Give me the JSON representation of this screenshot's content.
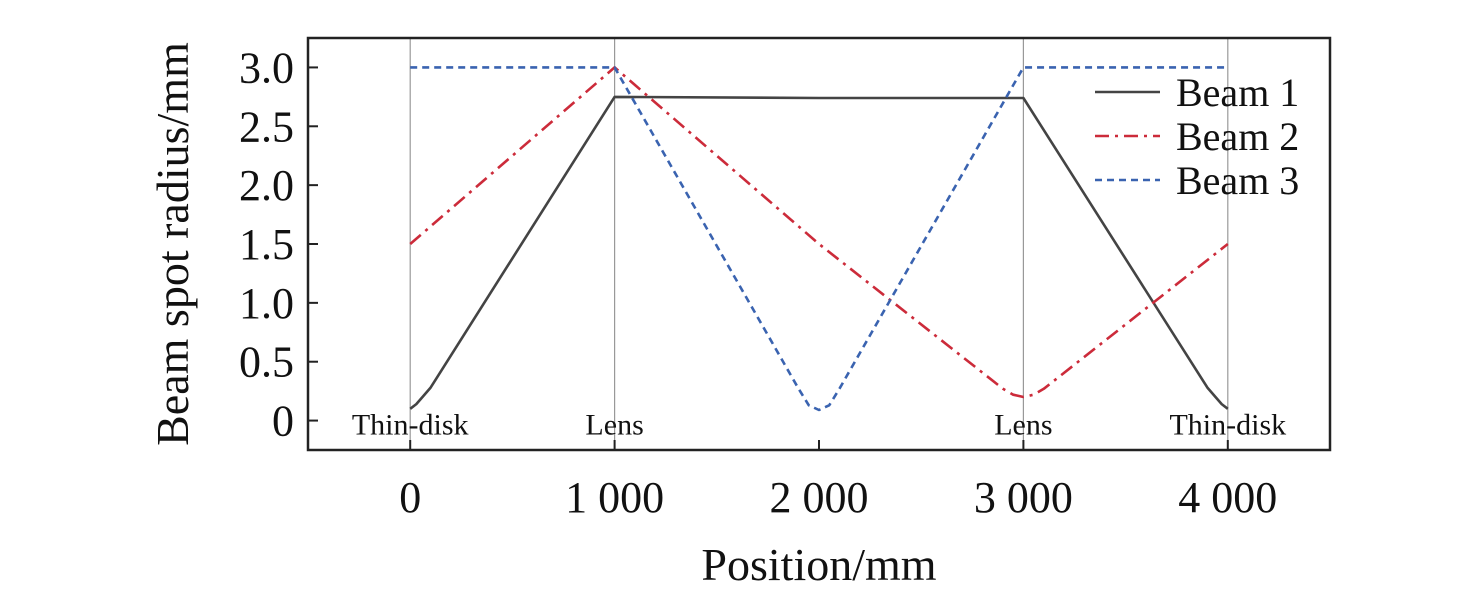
{
  "chart_data": {
    "type": "line",
    "title": "",
    "xlabel": "Position/mm",
    "ylabel": "Beam spot radius/mm",
    "xlim": [
      -500,
      4500
    ],
    "ylim": [
      -0.25,
      3.25
    ],
    "xticks": [
      0,
      1000,
      2000,
      3000,
      4000
    ],
    "xtick_labels": [
      "0",
      "1 000",
      "2 000",
      "3 000",
      "4 000"
    ],
    "yticks": [
      0,
      0.5,
      1.0,
      1.5,
      2.0,
      2.5,
      3.0
    ],
    "ytick_labels": [
      "0",
      "0.5",
      "1.0",
      "1.5",
      "2.0",
      "2.5",
      "3.0"
    ],
    "grid": false,
    "legend_position": "top-right",
    "vlines": [
      0,
      1000,
      3000,
      4000
    ],
    "annotations": [
      {
        "text": "Thin-disk",
        "x": 0,
        "y": 0
      },
      {
        "text": "Lens",
        "x": 1000,
        "y": 0
      },
      {
        "text": "Lens",
        "x": 3000,
        "y": 0
      },
      {
        "text": "Thin-disk",
        "x": 4000,
        "y": 0
      }
    ],
    "series": [
      {
        "name": "Beam 1",
        "color": "#444444",
        "style": "solid",
        "x": [
          0,
          30,
          60,
          100,
          1000,
          2000,
          3000,
          3900,
          3940,
          3970,
          4000
        ],
        "y": [
          0.1,
          0.14,
          0.2,
          0.28,
          2.75,
          2.74,
          2.74,
          0.28,
          0.2,
          0.14,
          0.1
        ]
      },
      {
        "name": "Beam 2",
        "color": "#cc2b3a",
        "style": "dashdot",
        "x": [
          0,
          1000,
          2000,
          2900,
          2950,
          3000,
          3050,
          3100,
          4000
        ],
        "y": [
          1.5,
          3.0,
          1.5,
          0.27,
          0.22,
          0.2,
          0.22,
          0.27,
          1.5
        ]
      },
      {
        "name": "Beam 3",
        "color": "#3a63b0",
        "style": "dotted",
        "x": [
          0,
          1000,
          1900,
          1950,
          2000,
          2050,
          2100,
          3000,
          4000
        ],
        "y": [
          3.0,
          3.0,
          0.27,
          0.13,
          0.09,
          0.13,
          0.27,
          3.0,
          3.0
        ]
      }
    ]
  }
}
